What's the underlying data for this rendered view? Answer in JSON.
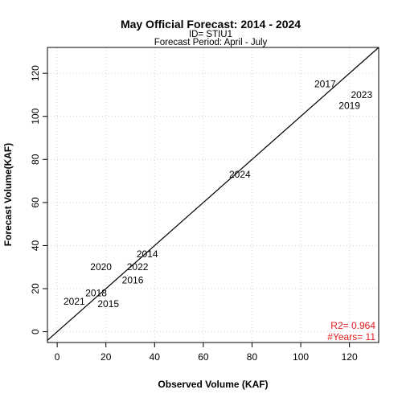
{
  "chart_data": {
    "type": "scatter",
    "title": "May Official Forecast: 2014 - 2024",
    "subtitle_lines": [
      "ID= STIU1",
      "Forecast Period:  April - July"
    ],
    "xlabel": "Observed Volume (KAF)",
    "ylabel": "Forecast Volume(KAF)",
    "xlim": [
      -4,
      132
    ],
    "ylim": [
      -5,
      132
    ],
    "xticks": [
      0,
      20,
      40,
      60,
      80,
      100,
      120
    ],
    "yticks": [
      0,
      20,
      40,
      60,
      80,
      100,
      120
    ],
    "grid": true,
    "reference_line": "1:1",
    "points": [
      {
        "label": "2014",
        "x": 37,
        "y": 36
      },
      {
        "label": "2015",
        "x": 21,
        "y": 13
      },
      {
        "label": "2016",
        "x": 31,
        "y": 24
      },
      {
        "label": "2017",
        "x": 110,
        "y": 115
      },
      {
        "label": "2018",
        "x": 16,
        "y": 18
      },
      {
        "label": "2019",
        "x": 120,
        "y": 105
      },
      {
        "label": "2020",
        "x": 18,
        "y": 30
      },
      {
        "label": "2021",
        "x": 7,
        "y": 14
      },
      {
        "label": "2022",
        "x": 33,
        "y": 30
      },
      {
        "label": "2023",
        "x": 125,
        "y": 110
      },
      {
        "label": "2024",
        "x": 75,
        "y": 73
      }
    ],
    "stats": {
      "r2": "R2=  0.964",
      "years": "#Years=  11",
      "color": "#e41a1c"
    }
  }
}
